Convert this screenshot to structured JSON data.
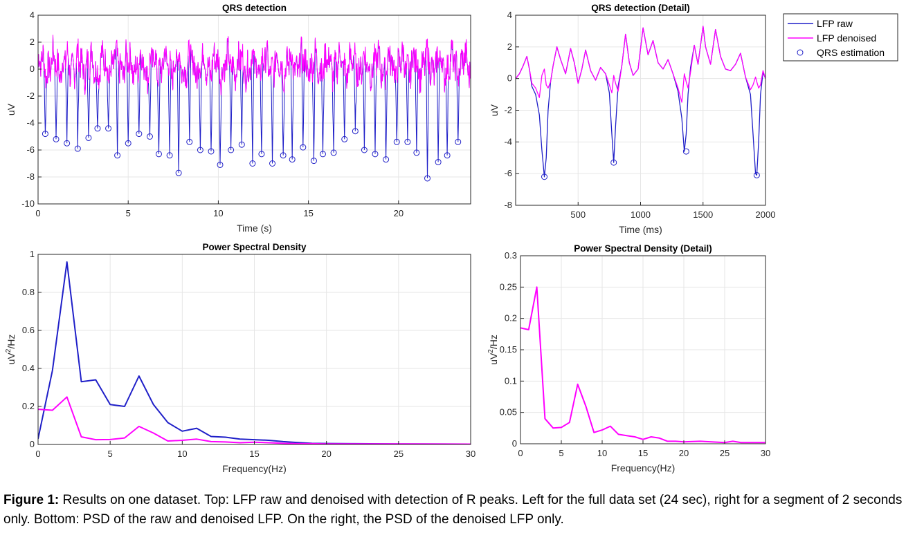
{
  "caption": {
    "label": "Figure 1:",
    "text": " Results on one dataset. Top: LFP raw and denoised with detection of R peaks. Left for the full data set (24 sec), right for a segment of 2 seconds only. Bottom: PSD of the raw and denoised LFP. On the right, the PSD of the denoised LFP only."
  },
  "colors": {
    "raw": "#1f1fc8",
    "denoised": "#ff00ff",
    "qrs": "#1f1fc8",
    "grid": "#e6e6e6"
  },
  "legend": {
    "items": [
      {
        "label": "LFP raw",
        "kind": "line",
        "color": "#1f1fc8"
      },
      {
        "label": "LFP denoised",
        "kind": "line",
        "color": "#ff00ff"
      },
      {
        "label": "QRS estimation",
        "kind": "marker",
        "color": "#1f1fc8"
      }
    ]
  },
  "chart_data": [
    {
      "id": "qrs_full",
      "type": "line",
      "title": "QRS detection",
      "xlabel": "Time (s)",
      "ylabel": "uV",
      "xlim": [
        0,
        24
      ],
      "ylim": [
        -10,
        4
      ],
      "xticks": [
        0,
        5,
        10,
        15,
        20
      ],
      "yticks": [
        -10,
        -8,
        -6,
        -4,
        -2,
        0,
        2,
        4
      ],
      "grid": true,
      "series": [
        {
          "name": "QRS estimation",
          "kind": "scatter",
          "x": [
            0.4,
            1.0,
            1.6,
            2.2,
            2.8,
            3.3,
            3.9,
            4.4,
            5.0,
            5.6,
            6.2,
            6.7,
            7.3,
            7.8,
            8.4,
            9.0,
            9.6,
            10.1,
            10.7,
            11.3,
            11.9,
            12.4,
            13.0,
            13.6,
            14.1,
            14.7,
            15.3,
            15.8,
            16.4,
            17.0,
            17.6,
            18.1,
            18.7,
            19.3,
            19.9,
            20.5,
            21.0,
            21.6,
            22.2,
            22.7,
            23.3
          ],
          "y": [
            -4.8,
            -5.2,
            -5.5,
            -5.9,
            -5.1,
            -4.4,
            -4.4,
            -6.4,
            -5.5,
            -4.8,
            -5.0,
            -6.3,
            -6.4,
            -7.7,
            -5.4,
            -6.0,
            -6.1,
            -7.1,
            -6.0,
            -5.6,
            -7.0,
            -6.3,
            -7.0,
            -6.4,
            -6.7,
            -5.8,
            -6.8,
            -6.3,
            -6.2,
            -5.2,
            -4.6,
            -6.0,
            -6.3,
            -6.7,
            -5.4,
            -5.4,
            -6.2,
            -8.1,
            -6.9,
            -6.4,
            -5.4
          ]
        }
      ]
    },
    {
      "id": "qrs_detail",
      "type": "line",
      "title": "QRS detection (Detail)",
      "xlabel": "Time (ms)",
      "ylabel": "uV",
      "xlim": [
        0,
        2000
      ],
      "ylim": [
        -8,
        4
      ],
      "xticks": [
        500,
        1000,
        1500,
        2000
      ],
      "yticks": [
        -8,
        -6,
        -4,
        -2,
        0,
        2,
        4
      ],
      "grid": true,
      "series": [
        {
          "name": "LFP raw",
          "x": [
            0,
            30,
            60,
            90,
            110,
            130,
            160,
            190,
            210,
            230,
            245,
            260,
            280,
            300,
            330,
            360,
            400,
            440,
            470,
            500,
            530,
            560,
            600,
            640,
            680,
            720,
            750,
            770,
            785,
            800,
            820,
            850,
            880,
            910,
            940,
            980,
            1020,
            1060,
            1100,
            1140,
            1180,
            1220,
            1260,
            1300,
            1330,
            1350,
            1365,
            1380,
            1400,
            1430,
            1460,
            1500,
            1520,
            1560,
            1600,
            1640,
            1680,
            1720,
            1760,
            1800,
            1840,
            1880,
            1900,
            1920,
            1930,
            1945,
            1960,
            1980,
            2000
          ],
          "y": [
            0.0,
            0.3,
            0.8,
            1.4,
            0.6,
            -0.5,
            -1.0,
            -2.3,
            -4.5,
            -6.2,
            -5.0,
            -2.0,
            -0.2,
            0.8,
            2.0,
            1.2,
            0.3,
            1.9,
            1.0,
            -0.3,
            0.6,
            1.8,
            0.5,
            -0.1,
            0.7,
            0.3,
            -0.9,
            -3.5,
            -5.3,
            -3.0,
            -0.5,
            0.8,
            2.8,
            1.0,
            0.2,
            0.6,
            3.2,
            1.5,
            2.4,
            1.0,
            0.6,
            1.2,
            0.3,
            -0.8,
            -2.5,
            -4.6,
            -3.5,
            -1.0,
            0.7,
            2.1,
            0.9,
            3.3,
            2.0,
            0.9,
            3.1,
            1.4,
            0.6,
            0.5,
            0.9,
            1.6,
            0.1,
            -1.0,
            -3.5,
            -6.0,
            -6.1,
            -4.0,
            -1.0,
            0.4,
            0.0
          ]
        },
        {
          "name": "LFP denoised",
          "x": [
            0,
            30,
            60,
            90,
            110,
            130,
            160,
            190,
            210,
            230,
            245,
            260,
            280,
            300,
            330,
            360,
            400,
            440,
            470,
            500,
            530,
            560,
            600,
            640,
            680,
            720,
            750,
            770,
            785,
            800,
            820,
            850,
            880,
            910,
            940,
            980,
            1020,
            1060,
            1100,
            1140,
            1180,
            1220,
            1260,
            1300,
            1330,
            1350,
            1365,
            1380,
            1400,
            1430,
            1460,
            1500,
            1520,
            1560,
            1600,
            1640,
            1680,
            1720,
            1760,
            1800,
            1840,
            1880,
            1900,
            1920,
            1930,
            1945,
            1960,
            1980,
            2000
          ],
          "y": [
            0.0,
            0.3,
            0.8,
            1.4,
            0.6,
            -0.3,
            -0.6,
            -1.2,
            0.2,
            0.6,
            -0.4,
            -0.6,
            -0.2,
            0.8,
            2.0,
            1.2,
            0.3,
            1.9,
            1.0,
            -0.3,
            0.6,
            1.8,
            0.5,
            -0.1,
            0.7,
            0.3,
            -0.4,
            -0.9,
            0.2,
            -0.3,
            -0.8,
            0.8,
            2.8,
            1.0,
            0.2,
            0.6,
            3.2,
            1.5,
            2.4,
            1.0,
            0.6,
            1.2,
            0.3,
            -0.6,
            -1.5,
            0.3,
            -0.2,
            -0.6,
            0.4,
            2.1,
            0.9,
            3.3,
            2.0,
            0.9,
            3.1,
            1.4,
            0.6,
            0.5,
            0.9,
            1.6,
            0.1,
            -0.7,
            -0.4,
            0.1,
            -0.2,
            -0.6,
            -0.4,
            0.5,
            0.0
          ]
        },
        {
          "name": "QRS estimation",
          "kind": "scatter",
          "x": [
            230,
            785,
            1365,
            1930
          ],
          "y": [
            -6.2,
            -5.3,
            -4.6,
            -6.1
          ]
        }
      ]
    },
    {
      "id": "psd_full",
      "type": "line",
      "title": "Power Spectral Density",
      "xlabel": "Frequency(Hz)",
      "ylabel": "uV^2/Hz",
      "xlim": [
        0,
        30
      ],
      "ylim": [
        0,
        1
      ],
      "xticks": [
        0,
        5,
        10,
        15,
        20,
        25,
        30
      ],
      "yticks": [
        0,
        0.2,
        0.4,
        0.6,
        0.8,
        1
      ],
      "grid": true,
      "series": [
        {
          "name": "LFP raw",
          "x": [
            0,
            1,
            2,
            3,
            4,
            5,
            6,
            7,
            8,
            9,
            10,
            11,
            12,
            13,
            14,
            15,
            16,
            17,
            18,
            19,
            20,
            22,
            25,
            30
          ],
          "y": [
            0.03,
            0.39,
            0.96,
            0.33,
            0.34,
            0.21,
            0.2,
            0.36,
            0.21,
            0.115,
            0.07,
            0.085,
            0.042,
            0.038,
            0.028,
            0.025,
            0.022,
            0.015,
            0.01,
            0.006,
            0.005,
            0.004,
            0.003,
            0.002
          ]
        },
        {
          "name": "LFP denoised",
          "x": [
            0,
            1,
            2,
            3,
            4,
            5,
            6,
            7,
            8,
            9,
            10,
            11,
            12,
            13,
            14,
            15,
            16,
            17,
            18,
            19,
            20,
            22,
            25,
            30
          ],
          "y": [
            0.185,
            0.18,
            0.25,
            0.04,
            0.025,
            0.026,
            0.034,
            0.095,
            0.06,
            0.018,
            0.022,
            0.028,
            0.015,
            0.013,
            0.009,
            0.012,
            0.009,
            0.006,
            0.004,
            0.004,
            0.003,
            0.003,
            0.003,
            0.002
          ]
        }
      ]
    },
    {
      "id": "psd_detail",
      "type": "line",
      "title": "Power Spectral Density (Detail)",
      "xlabel": "Frequency(Hz)",
      "ylabel": "uV^2/Hz",
      "xlim": [
        0,
        30
      ],
      "ylim": [
        0,
        0.3
      ],
      "xticks": [
        0,
        5,
        10,
        15,
        20,
        25,
        30
      ],
      "yticks": [
        0,
        0.05,
        0.1,
        0.15,
        0.2,
        0.25,
        0.3
      ],
      "grid": true,
      "series": [
        {
          "name": "LFP denoised",
          "x": [
            0,
            1,
            2,
            3,
            4,
            5,
            6,
            7,
            8,
            9,
            10,
            11,
            12,
            13,
            14,
            15,
            16,
            17,
            18,
            19,
            20,
            22,
            25,
            26,
            27,
            28,
            30
          ],
          "y": [
            0.185,
            0.182,
            0.25,
            0.04,
            0.025,
            0.026,
            0.034,
            0.095,
            0.06,
            0.018,
            0.022,
            0.028,
            0.015,
            0.013,
            0.011,
            0.007,
            0.011,
            0.009,
            0.004,
            0.004,
            0.003,
            0.004,
            0.002,
            0.004,
            0.002,
            0.002,
            0.002
          ]
        }
      ]
    }
  ]
}
